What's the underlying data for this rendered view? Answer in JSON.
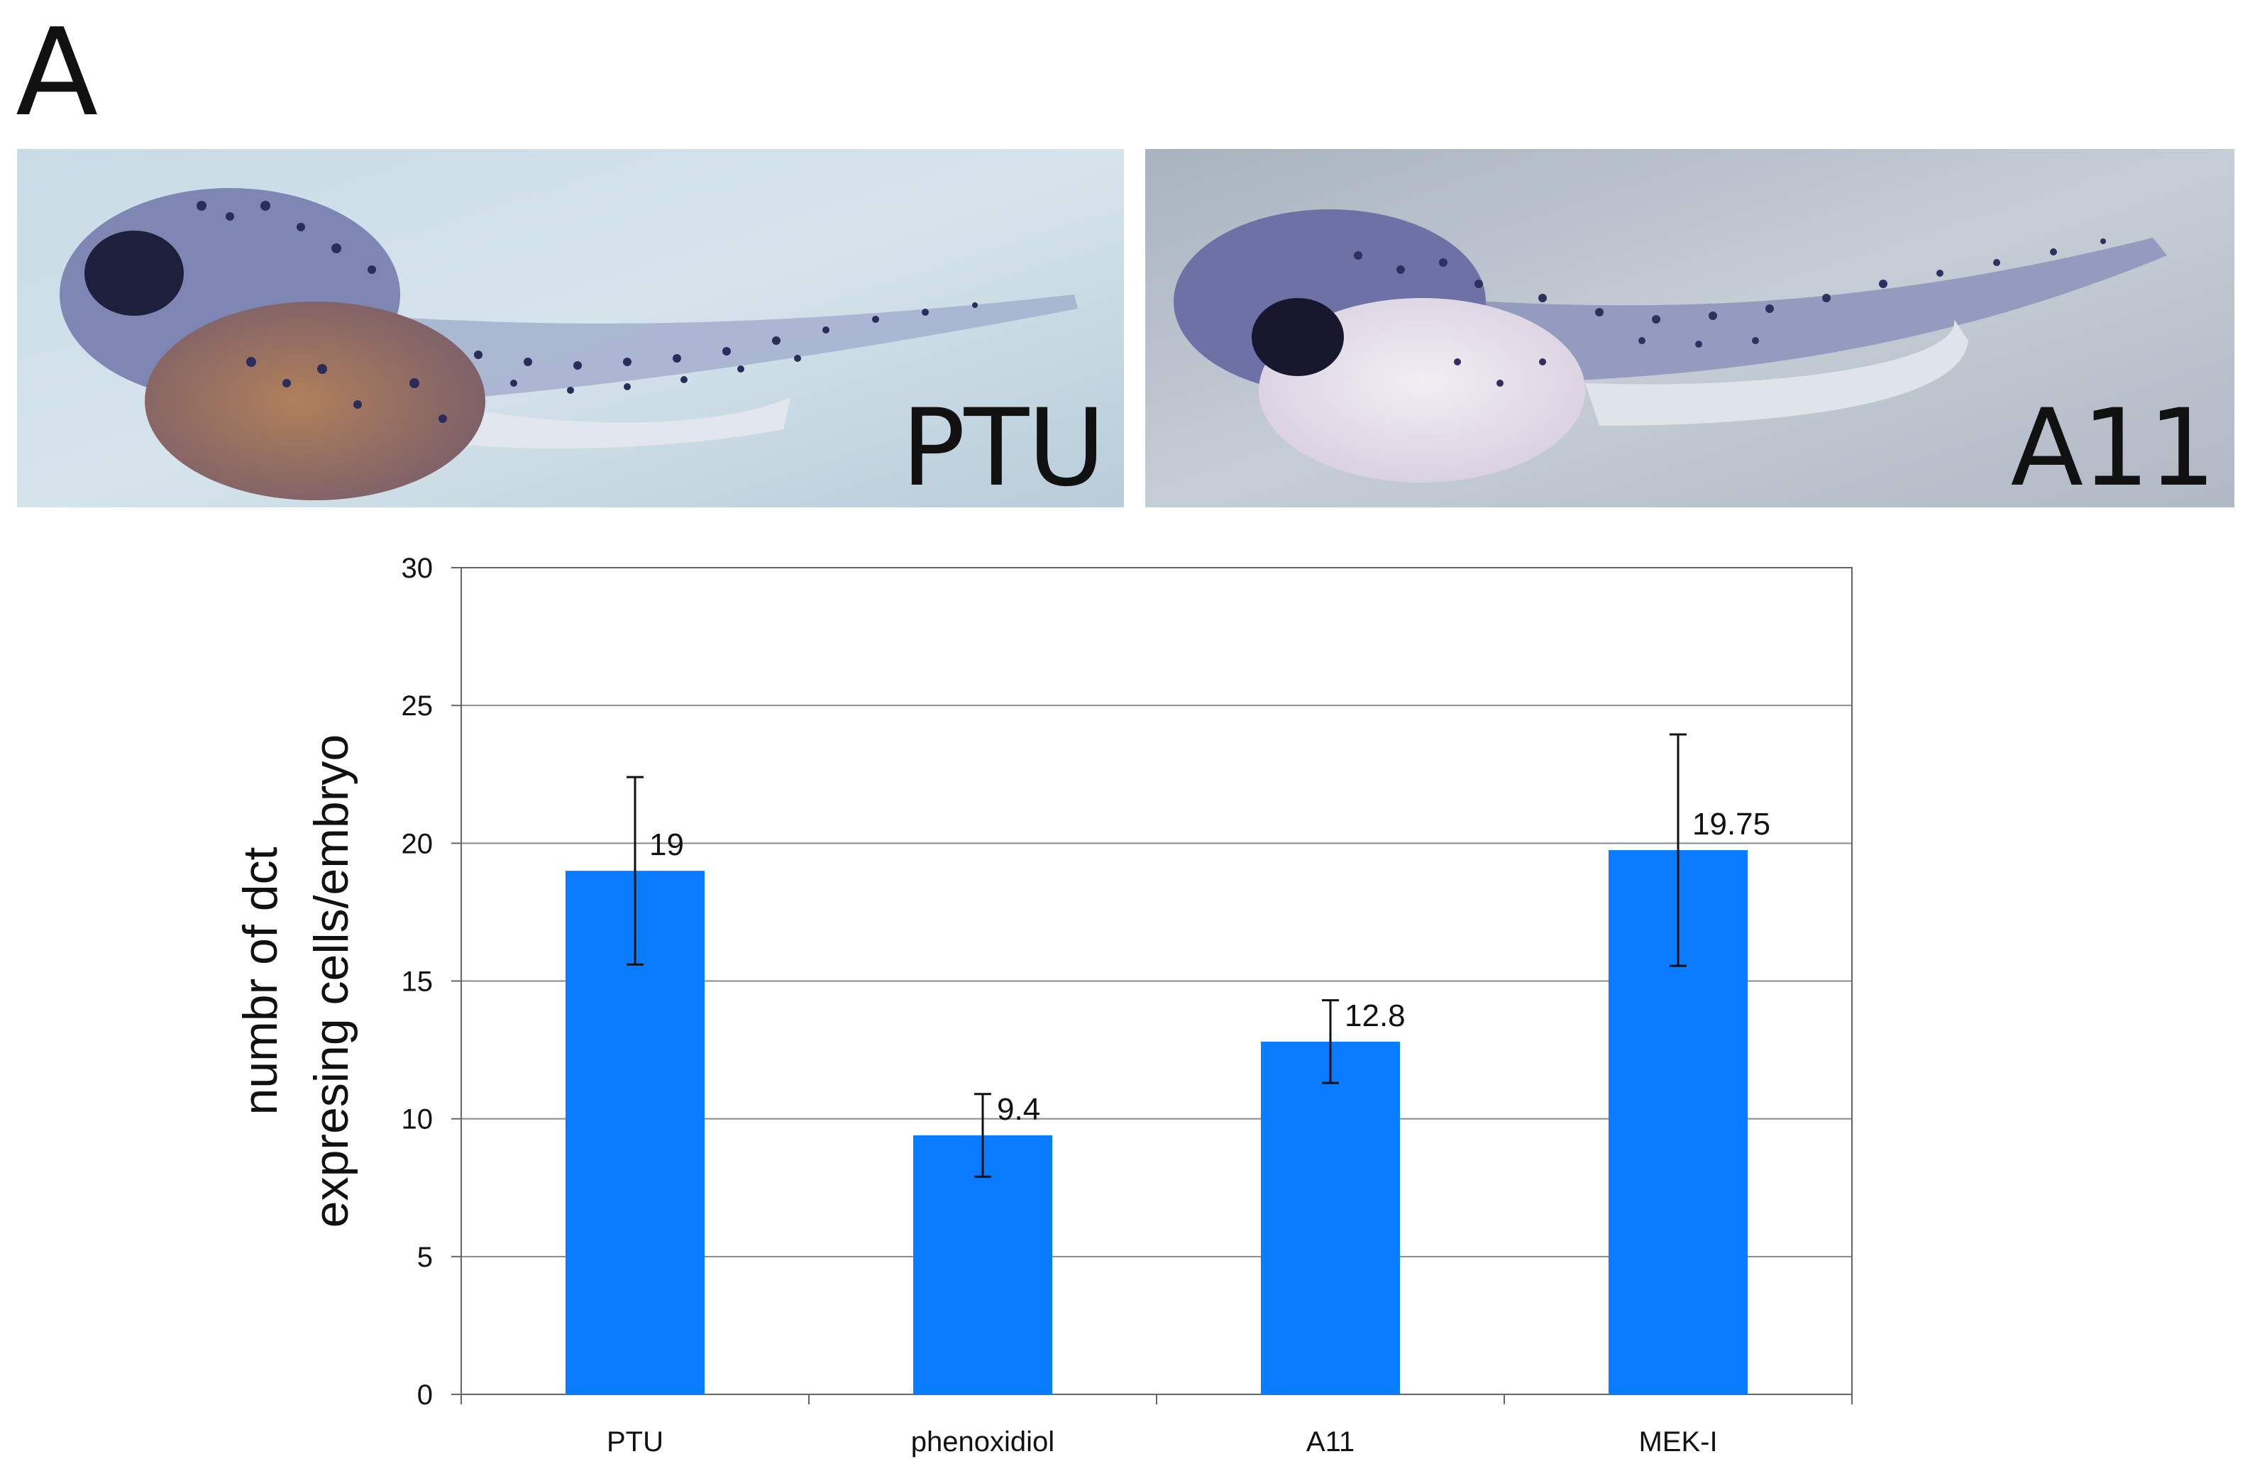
{
  "panel_label": "A",
  "images": [
    {
      "label": "PTU"
    },
    {
      "label": "A11"
    }
  ],
  "chart_data": {
    "type": "bar",
    "categories": [
      "PTU",
      "phenoxidiol",
      "A11",
      "MEK-I"
    ],
    "values": [
      19,
      9.4,
      12.8,
      19.75
    ],
    "data_labels": [
      "19",
      "9.4",
      "12.8",
      "19.75"
    ],
    "error_bars": [
      3.4,
      1.5,
      1.5,
      4.2
    ],
    "title": "",
    "xlabel": "",
    "ylabel": [
      "numbr of dct",
      "expresing cells/embryo"
    ],
    "ylim": [
      0,
      30
    ],
    "yticks": [
      0,
      5,
      10,
      15,
      20,
      25,
      30
    ],
    "grid": true,
    "bar_color": "#0a7cff"
  }
}
